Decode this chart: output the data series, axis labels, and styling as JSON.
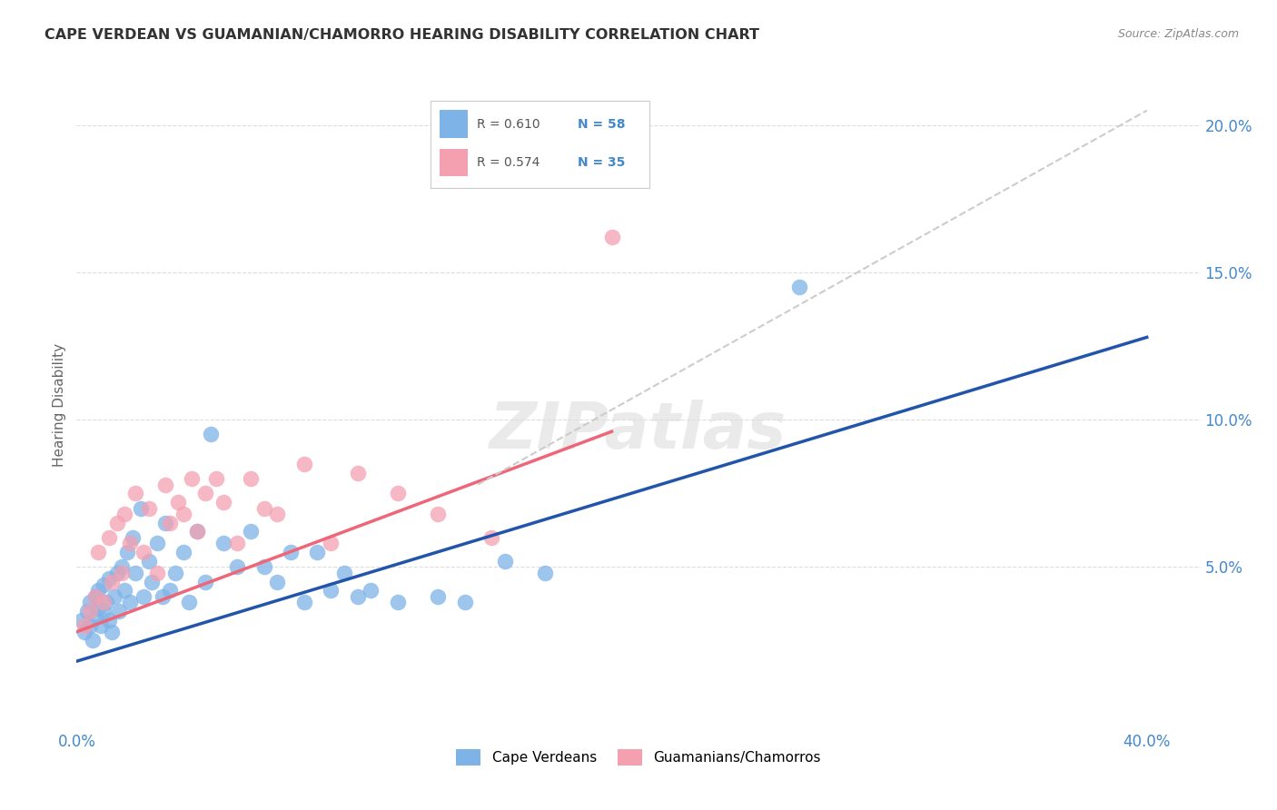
{
  "title": "CAPE VERDEAN VS GUAMANIAN/CHAMORRO HEARING DISABILITY CORRELATION CHART",
  "source": "Source: ZipAtlas.com",
  "ylabel": "Hearing Disability",
  "xlim": [
    0.0,
    0.42
  ],
  "ylim": [
    -0.005,
    0.215
  ],
  "xtick_values": [
    0.0,
    0.1,
    0.2,
    0.3,
    0.4
  ],
  "xtick_labels": [
    "0.0%",
    "",
    "",
    "",
    "40.0%"
  ],
  "ytick_values": [
    0.05,
    0.1,
    0.15,
    0.2
  ],
  "ytick_labels_right": [
    "5.0%",
    "10.0%",
    "15.0%",
    "20.0%"
  ],
  "legend_r1": "R = 0.610",
  "legend_n1": "N = 58",
  "legend_r2": "R = 0.574",
  "legend_n2": "N = 35",
  "color_blue": "#7EB3E8",
  "color_pink": "#F4A0B0",
  "color_line_blue": "#2255AA",
  "color_line_pink": "#EE6677",
  "color_dashed": "#CCCCCC",
  "color_tick_label": "#4488CC",
  "watermark_text": "ZIPatlas",
  "blue_line_x0": 0.0,
  "blue_line_y0": 0.018,
  "blue_line_x1": 0.4,
  "blue_line_y1": 0.128,
  "pink_line_x0": 0.0,
  "pink_line_y0": 0.028,
  "pink_line_x1": 0.2,
  "pink_line_y1": 0.096,
  "dashed_line_x0": 0.15,
  "dashed_line_y0": 0.078,
  "dashed_line_x1": 0.4,
  "dashed_line_y1": 0.205,
  "cv_x": [
    0.002,
    0.003,
    0.004,
    0.005,
    0.005,
    0.006,
    0.007,
    0.007,
    0.008,
    0.008,
    0.009,
    0.01,
    0.01,
    0.011,
    0.012,
    0.012,
    0.013,
    0.014,
    0.015,
    0.016,
    0.017,
    0.018,
    0.019,
    0.02,
    0.021,
    0.022,
    0.024,
    0.025,
    0.027,
    0.028,
    0.03,
    0.032,
    0.033,
    0.035,
    0.037,
    0.04,
    0.042,
    0.045,
    0.048,
    0.05,
    0.055,
    0.06,
    0.065,
    0.07,
    0.075,
    0.08,
    0.085,
    0.09,
    0.095,
    0.1,
    0.105,
    0.11,
    0.12,
    0.135,
    0.145,
    0.16,
    0.175,
    0.27
  ],
  "cv_y": [
    0.032,
    0.028,
    0.035,
    0.03,
    0.038,
    0.025,
    0.04,
    0.033,
    0.042,
    0.036,
    0.03,
    0.035,
    0.044,
    0.038,
    0.032,
    0.046,
    0.028,
    0.04,
    0.048,
    0.035,
    0.05,
    0.042,
    0.055,
    0.038,
    0.06,
    0.048,
    0.07,
    0.04,
    0.052,
    0.045,
    0.058,
    0.04,
    0.065,
    0.042,
    0.048,
    0.055,
    0.038,
    0.062,
    0.045,
    0.095,
    0.058,
    0.05,
    0.062,
    0.05,
    0.045,
    0.055,
    0.038,
    0.055,
    0.042,
    0.048,
    0.04,
    0.042,
    0.038,
    0.04,
    0.038,
    0.052,
    0.048,
    0.145
  ],
  "gm_x": [
    0.003,
    0.005,
    0.007,
    0.008,
    0.01,
    0.012,
    0.013,
    0.015,
    0.017,
    0.018,
    0.02,
    0.022,
    0.025,
    0.027,
    0.03,
    0.033,
    0.035,
    0.038,
    0.04,
    0.043,
    0.045,
    0.048,
    0.052,
    0.055,
    0.06,
    0.065,
    0.07,
    0.075,
    0.085,
    0.095,
    0.105,
    0.12,
    0.135,
    0.155,
    0.2
  ],
  "gm_y": [
    0.03,
    0.035,
    0.04,
    0.055,
    0.038,
    0.06,
    0.045,
    0.065,
    0.048,
    0.068,
    0.058,
    0.075,
    0.055,
    0.07,
    0.048,
    0.078,
    0.065,
    0.072,
    0.068,
    0.08,
    0.062,
    0.075,
    0.08,
    0.072,
    0.058,
    0.08,
    0.07,
    0.068,
    0.085,
    0.058,
    0.082,
    0.075,
    0.068,
    0.06,
    0.162
  ]
}
